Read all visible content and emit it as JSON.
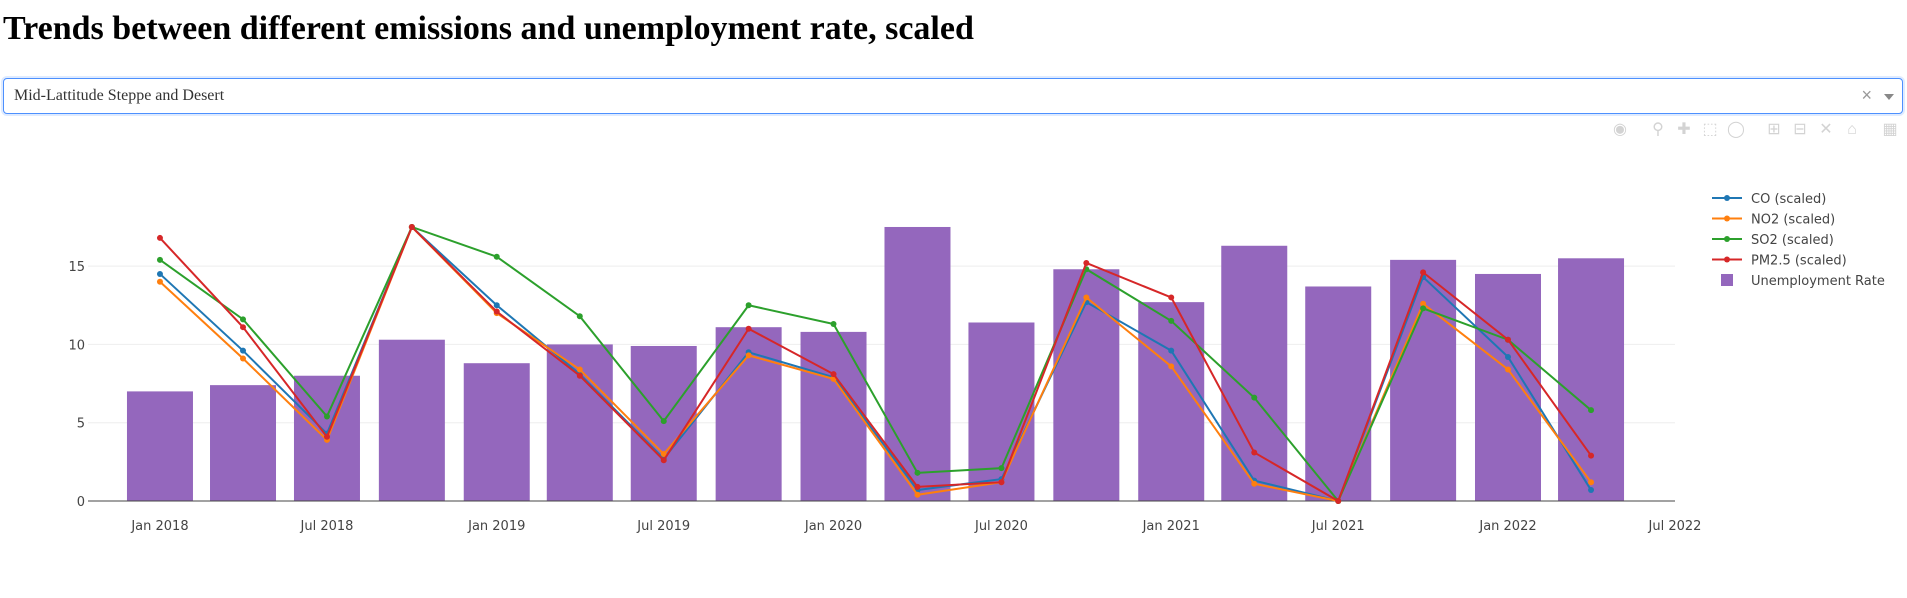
{
  "header": {
    "title": "Trends between different emissions and unemployment rate, scaled"
  },
  "dropdown": {
    "value": "Mid-Lattitude Steppe and Desert",
    "clear": "×"
  },
  "modebar": [
    "camera-icon",
    "zoom-icon",
    "pan-icon",
    "box-select-icon",
    "lasso-icon",
    "zoom-in-icon",
    "zoom-out-icon",
    "autoscale-icon",
    "reset-axes-icon",
    "plotly-logo-icon"
  ],
  "chart_data": {
    "type": "bar+line",
    "title": "",
    "x_dates": [
      "2018-01-01",
      "2018-04-01",
      "2018-07-01",
      "2018-10-01",
      "2019-01-01",
      "2019-04-01",
      "2019-07-01",
      "2019-10-01",
      "2020-01-01",
      "2020-04-01",
      "2020-07-01",
      "2020-10-01",
      "2021-01-01",
      "2021-04-01",
      "2021-07-01",
      "2021-10-01",
      "2022-01-01",
      "2022-04-01"
    ],
    "xlim": [
      "2017-10-15",
      "2022-07-01"
    ],
    "x_ticks": [
      "2018-01-01",
      "2018-07-01",
      "2019-01-01",
      "2019-07-01",
      "2020-01-01",
      "2020-07-01",
      "2021-01-01",
      "2021-07-01",
      "2022-01-01",
      "2022-07-01"
    ],
    "x_tick_labels": [
      "Jan 2018",
      "Jul 2018",
      "Jan 2019",
      "Jul 2019",
      "Jan 2020",
      "Jul 2020",
      "Jan 2021",
      "Jul 2021",
      "Jan 2022",
      "Jul 2022"
    ],
    "ylim": [
      0,
      20.5
    ],
    "y_ticks": [
      0,
      5,
      10,
      15
    ],
    "grid": true,
    "legend_position": "right",
    "series": [
      {
        "name": "CO (scaled)",
        "type": "line",
        "color": "#1f77b4",
        "values": [
          14.5,
          9.6,
          4.3,
          17.5,
          12.5,
          8.1,
          2.7,
          9.5,
          7.9,
          0.7,
          1.4,
          12.7,
          9.6,
          1.3,
          0.0,
          14.3,
          9.2,
          0.7
        ]
      },
      {
        "name": "NO2 (scaled)",
        "type": "line",
        "color": "#ff7f0e",
        "values": [
          14.0,
          9.1,
          3.9,
          17.5,
          12.0,
          8.4,
          3.0,
          9.3,
          7.8,
          0.4,
          1.2,
          13.0,
          8.6,
          1.1,
          0.0,
          12.6,
          8.4,
          1.2
        ]
      },
      {
        "name": "SO2 (scaled)",
        "type": "line",
        "color": "#2ca02c",
        "values": [
          15.4,
          11.6,
          5.4,
          17.5,
          15.6,
          11.8,
          5.1,
          12.5,
          11.3,
          1.8,
          2.1,
          14.8,
          11.5,
          6.6,
          0.0,
          12.3,
          10.3,
          5.8
        ]
      },
      {
        "name": "PM2.5 (scaled)",
        "type": "line",
        "color": "#d62728",
        "values": [
          16.8,
          11.1,
          4.1,
          17.5,
          12.1,
          8.0,
          2.6,
          11.0,
          8.1,
          0.9,
          1.2,
          15.2,
          13.0,
          3.1,
          0.0,
          14.6,
          10.3,
          2.9
        ]
      },
      {
        "name": "Unemployment Rate",
        "type": "bar",
        "color": "#9467bd",
        "values": [
          7.0,
          7.4,
          8.0,
          10.3,
          8.8,
          10.0,
          9.9,
          11.1,
          10.8,
          17.5,
          11.4,
          14.8,
          12.7,
          16.3,
          13.7,
          15.4,
          14.5,
          15.5
        ]
      }
    ]
  }
}
